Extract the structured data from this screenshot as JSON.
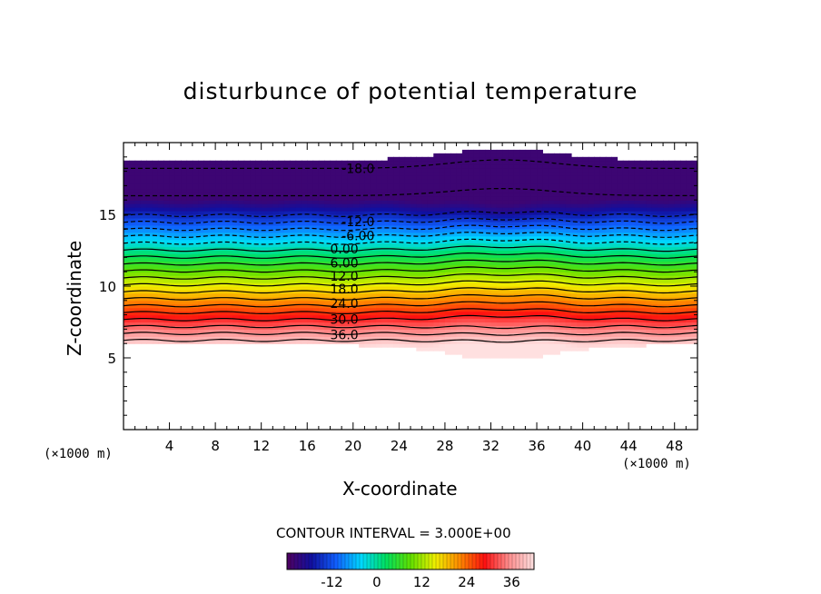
{
  "chart_data": {
    "type": "contour",
    "title": "disturbunce of potential temperature",
    "xlabel": "X-coordinate",
    "ylabel": "Z-coordinate",
    "x_unit_left": "(×1000 m)",
    "x_unit_right": "(×1000 m)",
    "xlim": [
      0,
      50
    ],
    "ylim": [
      0,
      20
    ],
    "x_ticks": [
      4,
      8,
      12,
      16,
      20,
      24,
      28,
      32,
      36,
      40,
      44,
      48
    ],
    "y_ticks": [
      5,
      10,
      15
    ],
    "contour_interval_text": "CONTOUR INTERVAL = 3.000E+00",
    "contour_interval": 3.0,
    "contour_labels": [
      {
        "text": "-18.0",
        "value": -18,
        "x": 19,
        "z": 18.2
      },
      {
        "text": "-12.0",
        "value": -12,
        "x": 19,
        "z": 14.5
      },
      {
        "text": "-6.00",
        "value": -6,
        "x": 19,
        "z": 13.5
      },
      {
        "text": "0.00",
        "value": 0,
        "x": 18,
        "z": 12.6
      },
      {
        "text": "6.00",
        "value": 6,
        "x": 18,
        "z": 11.6
      },
      {
        "text": "12.0",
        "value": 12,
        "x": 18,
        "z": 10.7
      },
      {
        "text": "18.0",
        "value": 18,
        "x": 18,
        "z": 9.8
      },
      {
        "text": "24.0",
        "value": 24,
        "x": 18,
        "z": 8.8
      },
      {
        "text": "30.0",
        "value": 30,
        "x": 18,
        "z": 7.7
      },
      {
        "text": "36.0",
        "value": 36,
        "x": 18,
        "z": 6.6
      }
    ],
    "field_range": [
      -24,
      42
    ],
    "colorbar_ticks": [
      "-12",
      "0",
      "12",
      "24",
      "36"
    ],
    "colormap": [
      "#500060",
      "#1010a0",
      "#1060ff",
      "#00d8ff",
      "#00e060",
      "#60e000",
      "#f0f000",
      "#ff8800",
      "#ff1010",
      "#ff9090",
      "#ffe0e0"
    ]
  }
}
